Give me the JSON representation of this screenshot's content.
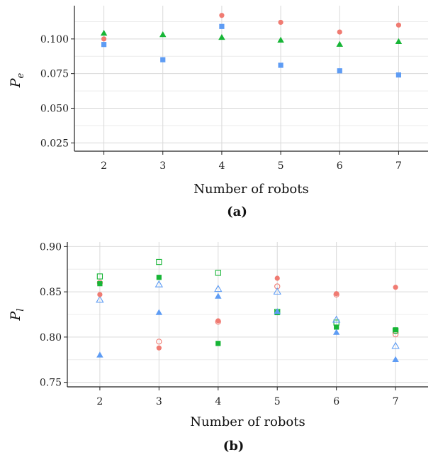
{
  "colors": {
    "red": "#f07b72",
    "green": "#17b536",
    "blue": "#5e9cf4",
    "grid": "#d9d9d9",
    "axis": "#222222"
  },
  "chart_data": [
    {
      "type": "scatter",
      "panel": "(a)",
      "xlabel": "Number of robots",
      "ylabel_main": "P",
      "ylabel_sub": "e",
      "x": [
        2,
        3,
        4,
        5,
        6,
        7
      ],
      "xlim": [
        1.5,
        7.5
      ],
      "ylim": [
        0.019,
        0.124
      ],
      "yticks": [
        {
          "v": 0.025,
          "label": "0.025"
        },
        {
          "v": 0.05,
          "label": "0.050"
        },
        {
          "v": 0.075,
          "label": "0.075"
        },
        {
          "v": 0.1,
          "label": "0.100"
        }
      ],
      "grid": true,
      "legend": "none",
      "series": [
        {
          "color": "red",
          "shape": "circle",
          "filled": true,
          "values": [
            0.1,
            null,
            0.117,
            0.112,
            0.105,
            0.11
          ]
        },
        {
          "color": "green",
          "shape": "triangle",
          "filled": true,
          "values": [
            0.104,
            0.103,
            0.101,
            0.099,
            0.096,
            0.098
          ]
        },
        {
          "color": "blue",
          "shape": "square",
          "filled": true,
          "values": [
            0.096,
            0.085,
            0.109,
            0.081,
            0.077,
            0.074
          ]
        }
      ]
    },
    {
      "type": "scatter",
      "panel": "(b)",
      "xlabel": "Number of robots",
      "ylabel_main": "P",
      "ylabel_sub": "l",
      "x": [
        2,
        3,
        4,
        5,
        6,
        7
      ],
      "xlim": [
        1.45,
        7.55
      ],
      "ylim": [
        0.745,
        0.905
      ],
      "yticks": [
        {
          "v": 0.75,
          "label": "0.75"
        },
        {
          "v": 0.8,
          "label": "0.80"
        },
        {
          "v": 0.85,
          "label": "0.85"
        },
        {
          "v": 0.9,
          "label": "0.90"
        }
      ],
      "grid": true,
      "legend": "none",
      "series": [
        {
          "color": "green",
          "shape": "square",
          "filled": false,
          "values": [
            0.867,
            0.883,
            0.871,
            0.828,
            0.816,
            0.807
          ]
        },
        {
          "color": "red",
          "shape": "circle",
          "filled": false,
          "values": [
            0.86,
            0.795,
            0.817,
            0.856,
            0.847,
            0.803
          ]
        },
        {
          "color": "green",
          "shape": "square",
          "filled": true,
          "values": [
            0.859,
            0.866,
            0.793,
            0.827,
            0.811,
            0.808
          ]
        },
        {
          "color": "blue",
          "shape": "triangle",
          "filled": false,
          "values": [
            0.841,
            0.858,
            0.853,
            0.85,
            0.819,
            0.79
          ]
        },
        {
          "color": "red",
          "shape": "circle",
          "filled": true,
          "values": [
            0.847,
            0.788,
            0.818,
            0.865,
            0.848,
            0.855
          ]
        },
        {
          "color": "blue",
          "shape": "triangle",
          "filled": true,
          "values": [
            0.78,
            0.827,
            0.845,
            0.828,
            0.805,
            0.775
          ]
        }
      ]
    }
  ]
}
